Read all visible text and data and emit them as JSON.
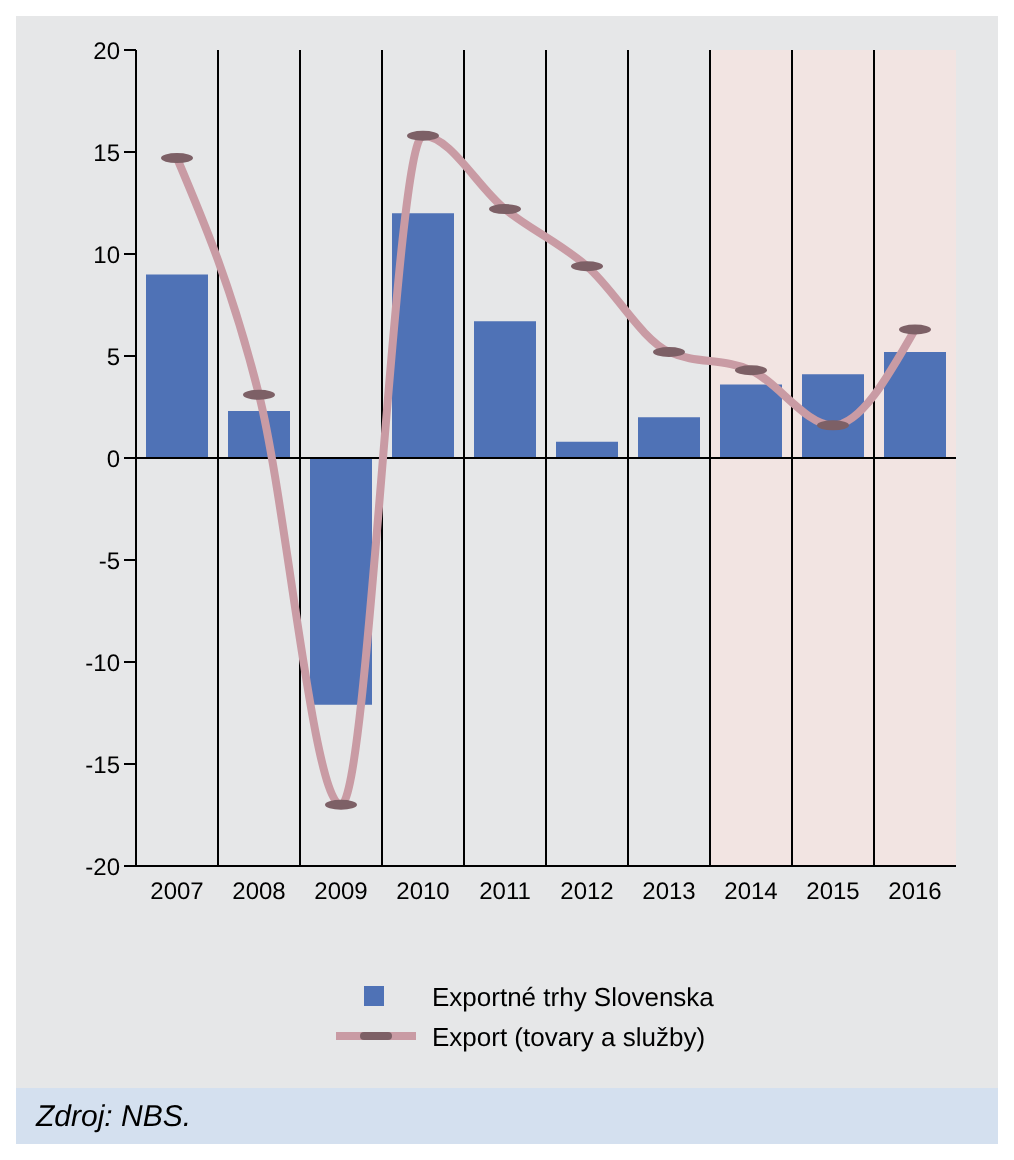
{
  "chart_data": {
    "type": "bar",
    "categories": [
      "2007",
      "2008",
      "2009",
      "2010",
      "2011",
      "2012",
      "2013",
      "2014",
      "2015",
      "2016"
    ],
    "series": [
      {
        "name": "Exportné trhy Slovenska",
        "color": "#4f72b6",
        "values": [
          9.0,
          2.3,
          -12.1,
          12.0,
          6.7,
          0.8,
          2.0,
          3.6,
          4.1,
          5.2
        ]
      },
      {
        "name": "Export (tovary a služby)",
        "type": "line",
        "color": "#c99ba4",
        "values": [
          14.7,
          3.1,
          -17.0,
          15.8,
          12.2,
          9.4,
          5.2,
          4.3,
          1.6,
          6.3
        ]
      }
    ],
    "ylim": [
      -20,
      20
    ],
    "yticks": [
      -20,
      -15,
      -10,
      -5,
      0,
      5,
      10,
      15,
      20
    ],
    "bands": [
      {
        "axis": "x",
        "from": "2014",
        "to": "2016",
        "color": "#f2e4e2"
      }
    ],
    "ref_lines": [
      {
        "axis": "y",
        "value": 0,
        "color": "#000000"
      }
    ],
    "grid": "x",
    "legend": "bottom",
    "marker": "circle",
    "annotations": [
      "Zdroj: NBS."
    ]
  }
}
